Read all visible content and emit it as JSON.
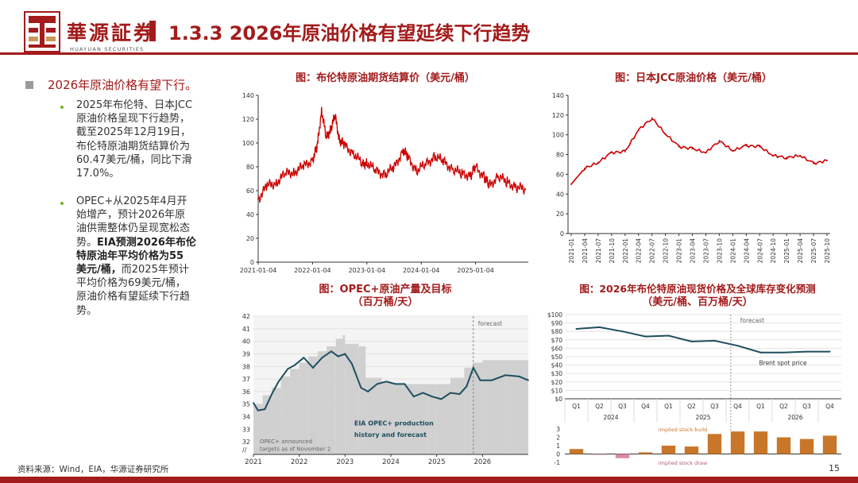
{
  "header": {
    "logo_cn": "華源証券",
    "logo_en": "HUAYUAN SECURITIES",
    "title": "1.3.3 2026年原油价格有望延续下行趋势"
  },
  "content": {
    "main_bullet": "2026年原油价格有望下行。",
    "sub_bullets": [
      {
        "lines": [
          "2025年布伦特、日本JCC",
          "原油价格呈现下行趋势，",
          "截至2025年12月19日，",
          "布伦特原油期货结算价为",
          "60.47美元/桶，同比下滑",
          "17.0%。"
        ]
      },
      {
        "lines": [
          "OPEC+从2025年4月开",
          "始增产，预计2026年原",
          "油供需整体仍呈现宽松态",
          "势。",
          "EIA预测2026年布伦",
          "特原油年平均价格为55",
          "美元/桶，",
          "而2025年预计",
          "平均价格为69美元/桶，",
          "原油价格有望延续下行趋",
          "势。"
        ]
      }
    ]
  },
  "colors": {
    "accent": "#a31b1b",
    "brent_line": "#cc0000",
    "eia_line": "#1f4e5f",
    "bar": "#c8772a",
    "gray_bar": "#d0d0d0"
  },
  "footer": {
    "source": "资料来源：Wind，EIA，华源证券研究所",
    "page": "15"
  },
  "chart_data": [
    {
      "id": "brent",
      "type": "line",
      "title": "图：布伦特原油期货结算价（美元/桶）",
      "xlabel": "",
      "ylabel": "",
      "ylim": [
        0,
        140
      ],
      "yticks": [
        0,
        20,
        40,
        60,
        80,
        100,
        120,
        140
      ],
      "xticks": [
        "2021-01-04",
        "2022-01-04",
        "2023-01-04",
        "2024-01-04",
        "2025-01-04"
      ],
      "series": [
        {
          "name": "布伦特原油期货结算价",
          "x": [
            "2021-01",
            "2021-03",
            "2021-05",
            "2021-07",
            "2021-09",
            "2021-11",
            "2022-01",
            "2022-02",
            "2022-03",
            "2022-04",
            "2022-05",
            "2022-06",
            "2022-07",
            "2022-08",
            "2022-10",
            "2022-12",
            "2023-01",
            "2023-03",
            "2023-05",
            "2023-07",
            "2023-09",
            "2023-10",
            "2023-12",
            "2024-02",
            "2024-04",
            "2024-06",
            "2024-08",
            "2024-10",
            "2024-12",
            "2025-01",
            "2025-03",
            "2025-04",
            "2025-06",
            "2025-08",
            "2025-10",
            "2025-12"
          ],
          "values": [
            53,
            64,
            67,
            74,
            76,
            80,
            86,
            96,
            128,
            104,
            112,
            122,
            102,
            98,
            92,
            82,
            84,
            76,
            74,
            79,
            94,
            88,
            77,
            82,
            89,
            84,
            78,
            74,
            73,
            80,
            71,
            64,
            72,
            67,
            63,
            61
          ]
        }
      ]
    },
    {
      "id": "jcc",
      "type": "line",
      "title": "图：日本JCC原油价格（美元/桶）",
      "ylim": [
        0,
        140
      ],
      "yticks": [
        0,
        20,
        40,
        60,
        80,
        100,
        120,
        140
      ],
      "categories": [
        "2021-01",
        "2021-04",
        "2021-07",
        "2021-10",
        "2022-01",
        "2022-04",
        "2022-07",
        "2022-10",
        "2023-01",
        "2023-04",
        "2023-07",
        "2023-10",
        "2024-01",
        "2024-04",
        "2024-07",
        "2024-10",
        "2025-01",
        "2025-04",
        "2025-07",
        "2025-10"
      ],
      "series": [
        {
          "name": "日本JCC原油价格",
          "values": [
            50,
            66,
            72,
            82,
            83,
            105,
            117,
            101,
            88,
            86,
            82,
            94,
            84,
            89,
            88,
            79,
            77,
            79,
            71,
            74
          ]
        }
      ]
    },
    {
      "id": "opec",
      "type": "area",
      "title": "图：OPEC+原油产量及目标",
      "subtitle": "（百万桶/天）",
      "ylim": [
        31,
        42
      ],
      "yticks": [
        32,
        33,
        34,
        35,
        36,
        37,
        38,
        39,
        40,
        41,
        42
      ],
      "xticks": [
        "2021",
        "2022",
        "2023",
        "2024",
        "2025",
        "2026"
      ],
      "forecast_label": "forecast",
      "annotation": "EIA OPEC+ production history and forecast",
      "annotation_lines": [
        "EIA OPEC+ production",
        "history and forecast"
      ],
      "target_note_lines": [
        "OPEC+ announced",
        "targets as of November 2"
      ],
      "axis_break": "//",
      "series": [
        {
          "name": "EIA OPEC+ production history and forecast",
          "x": [
            2021.0,
            2021.1,
            2021.25,
            2021.4,
            2021.55,
            2021.75,
            2021.9,
            2022.1,
            2022.3,
            2022.5,
            2022.7,
            2022.85,
            2023.0,
            2023.15,
            2023.35,
            2023.5,
            2023.7,
            2023.9,
            2024.1,
            2024.3,
            2024.5,
            2024.7,
            2024.9,
            2025.1,
            2025.3,
            2025.5,
            2025.65,
            2025.8,
            2025.95,
            2026.2,
            2026.5,
            2026.8,
            2027.0
          ],
          "values": [
            35.1,
            34.5,
            34.6,
            35.8,
            36.8,
            37.8,
            38.1,
            38.7,
            37.9,
            38.7,
            39.2,
            38.8,
            39.0,
            38.2,
            36.3,
            36.0,
            36.6,
            36.8,
            36.6,
            36.6,
            35.6,
            35.9,
            35.6,
            35.4,
            35.9,
            35.8,
            36.4,
            37.9,
            36.9,
            36.9,
            37.3,
            37.2,
            36.9
          ]
        },
        {
          "name": "OPEC+ announced targets as of November 2",
          "x": [
            2021.0,
            2021.2,
            2021.4,
            2021.6,
            2021.8,
            2022.0,
            2022.2,
            2022.4,
            2022.6,
            2022.8,
            2022.95,
            2023.0,
            2023.3,
            2023.45,
            2023.8,
            2024.0,
            2024.4,
            2024.8,
            2025.0,
            2025.3,
            2025.6,
            2025.8,
            2026.0,
            2026.5,
            2027.0
          ],
          "values": [
            35.0,
            35.7,
            36.3,
            37.2,
            37.8,
            38.3,
            38.8,
            39.2,
            39.6,
            40.2,
            40.5,
            39.8,
            39.6,
            37.1,
            36.8,
            36.6,
            36.6,
            36.6,
            36.6,
            37.1,
            37.9,
            38.3,
            38.5,
            38.5,
            38.5
          ]
        }
      ]
    },
    {
      "id": "brent_forecast",
      "type": "line",
      "title": "图：2026年布伦特原油现货价格及全球库存变化预测",
      "subtitle": "（美元/桶、百万桶/天）",
      "forecast_label": "forecast",
      "ylim": [
        0,
        100
      ],
      "yticks": [
        "$0",
        "$10",
        "$20",
        "$30",
        "$40",
        "$50",
        "$60",
        "$70",
        "$80",
        "$90",
        "$100"
      ],
      "quarters": [
        "Q1",
        "Q2",
        "Q3",
        "Q4",
        "Q1",
        "Q2",
        "Q3",
        "Q4",
        "Q1",
        "Q2",
        "Q3",
        "Q4"
      ],
      "years": [
        "2024",
        "2025",
        "2026"
      ],
      "series": [
        {
          "name": "Brent spot price",
          "values": [
            83,
            85,
            80,
            74,
            75,
            68,
            69,
            63,
            55,
            55,
            56,
            56
          ]
        }
      ],
      "stock_change": {
        "type": "bar",
        "ylim": [
          -1,
          3
        ],
        "yticks": [
          -1,
          0,
          1,
          2,
          3
        ],
        "labels": {
          "build": "implied stock build",
          "draw": "implied stock draw"
        },
        "values": [
          0.6,
          -0.1,
          -0.5,
          0.2,
          1.0,
          0.9,
          2.4,
          2.7,
          2.7,
          2.0,
          1.8,
          2.2
        ]
      }
    }
  ]
}
